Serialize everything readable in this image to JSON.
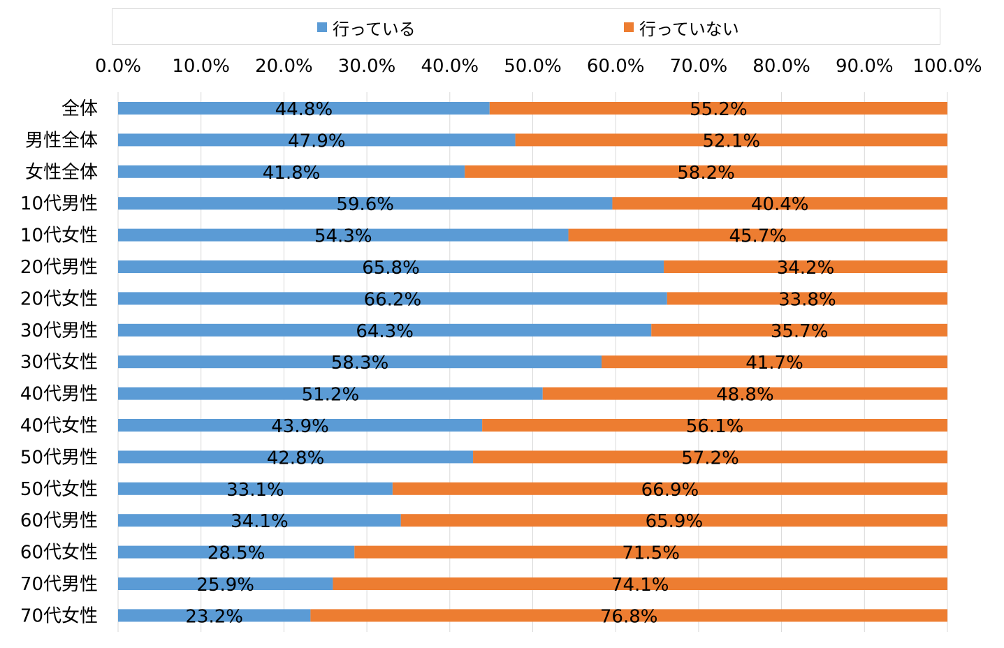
{
  "chart_data": {
    "type": "bar",
    "orientation": "horizontal",
    "stacked": true,
    "percent": true,
    "xlim": [
      0,
      100
    ],
    "x_tick_labels": [
      "0.0%",
      "10.0%",
      "20.0%",
      "30.0%",
      "40.0%",
      "50.0%",
      "60.0%",
      "70.0%",
      "80.0%",
      "90.0%",
      "100.0%"
    ],
    "x_tick_position": "top",
    "grid": "vertical",
    "legend_position": "top",
    "categories": [
      "全体",
      "男性全体",
      "女性全体",
      "10代男性",
      "10代女性",
      "20代男性",
      "20代女性",
      "30代男性",
      "30代女性",
      "40代男性",
      "40代女性",
      "50代男性",
      "50代女性",
      "60代男性",
      "60代女性",
      "70代男性",
      "70代女性"
    ],
    "series": [
      {
        "name": "行っている",
        "color": "#5b9bd5",
        "values": [
          44.8,
          47.9,
          41.8,
          59.6,
          54.3,
          65.8,
          66.2,
          64.3,
          58.3,
          51.2,
          43.9,
          42.8,
          33.1,
          34.1,
          28.5,
          25.9,
          23.2
        ],
        "labels": [
          "44.8%",
          "47.9%",
          "41.8%",
          "59.6%",
          "54.3%",
          "65.8%",
          "66.2%",
          "64.3%",
          "58.3%",
          "51.2%",
          "43.9%",
          "42.8%",
          "33.1%",
          "34.1%",
          "28.5%",
          "25.9%",
          "23.2%"
        ]
      },
      {
        "name": "行っていない",
        "color": "#ed7d31",
        "values": [
          55.2,
          52.1,
          58.2,
          40.4,
          45.7,
          34.2,
          33.8,
          35.7,
          41.7,
          48.8,
          56.1,
          57.2,
          66.9,
          65.9,
          71.5,
          74.1,
          76.8
        ],
        "labels": [
          "55.2%",
          "52.1%",
          "58.2%",
          "40.4%",
          "45.7%",
          "34.2%",
          "33.8%",
          "35.7%",
          "41.7%",
          "48.8%",
          "56.1%",
          "57.2%",
          "66.9%",
          "65.9%",
          "71.5%",
          "74.1%",
          "76.8%"
        ]
      }
    ]
  },
  "legend": {
    "items": [
      {
        "label": "行っている",
        "color": "#5b9bd5"
      },
      {
        "label": "行っていない",
        "color": "#ed7d31"
      }
    ]
  }
}
